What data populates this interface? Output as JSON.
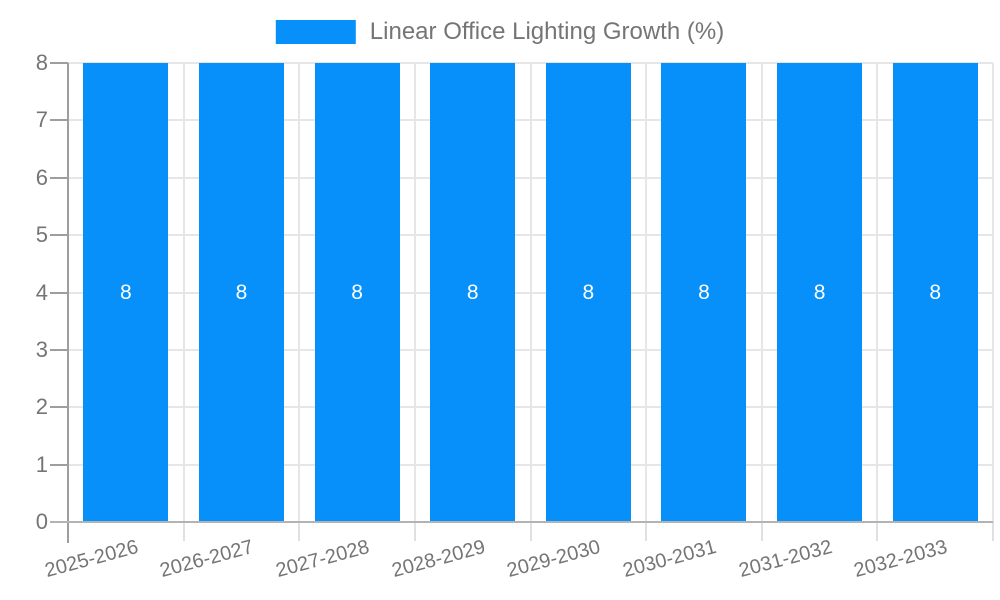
{
  "legend": {
    "label": "Linear Office Lighting Growth (%)"
  },
  "chart_data": {
    "type": "bar",
    "title": "",
    "categories": [
      "2025-2026",
      "2026-2027",
      "2027-2028",
      "2028-2029",
      "2029-2030",
      "2030-2031",
      "2031-2032",
      "2032-2033"
    ],
    "series": [
      {
        "name": "Linear Office Lighting Growth (%)",
        "values": [
          8,
          8,
          8,
          8,
          8,
          8,
          8,
          8
        ],
        "bar_labels": [
          "8",
          "8",
          "8",
          "8",
          "8",
          "8",
          "8",
          "8"
        ]
      }
    ],
    "xlabel": "",
    "ylabel": "",
    "ylim": [
      0,
      8
    ],
    "yticks": [
      0,
      1,
      2,
      3,
      4,
      5,
      6,
      7,
      8
    ],
    "grid": true,
    "legend_position": "top-center",
    "x_label_rotation_deg": -15,
    "colors": {
      "bar": "#0890fa",
      "bar_label": "#ffffff",
      "axis_text": "#757575",
      "gridline": "#e6e6e6",
      "baseline": "#b3b3b3",
      "axis_line": "#9e9e9e",
      "background": "#ffffff"
    }
  }
}
